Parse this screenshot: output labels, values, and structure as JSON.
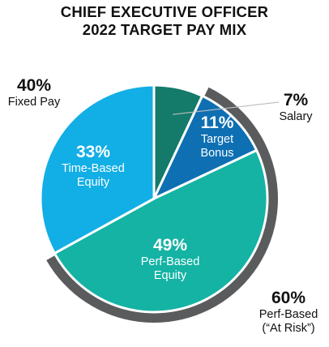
{
  "title": {
    "line1": "CHIEF EXECUTIVE OFFICER",
    "line2": "2022 TARGET PAY MIX"
  },
  "chart_data": {
    "type": "pie",
    "slices": [
      {
        "name": "Salary",
        "value": 7,
        "label": "7%",
        "color": "#147a6a"
      },
      {
        "name": "Target Bonus",
        "value": 11,
        "label": "11%",
        "color": "#0e6fb3"
      },
      {
        "name": "Perf-Based Equity",
        "value": 49,
        "label": "49%",
        "color": "#14b3a4"
      },
      {
        "name": "Time-Based Equity",
        "value": 33,
        "label": "33%",
        "color": "#12aee6"
      }
    ],
    "groups": [
      {
        "name": "Fixed Pay",
        "value": 40,
        "label": "40%",
        "members": [
          "Salary",
          "Time-Based Equity"
        ]
      },
      {
        "name": "Perf-Based (“At Risk”)",
        "value": 60,
        "label": "60%",
        "members": [
          "Target Bonus",
          "Perf-Based Equity"
        ],
        "arc_color": "#5a5b5d"
      }
    ]
  },
  "labels": {
    "salary": {
      "pct": "7%",
      "line1": "Salary"
    },
    "bonus": {
      "pct": "11%",
      "line1": "Target",
      "line2": "Bonus"
    },
    "time_equity": {
      "pct": "33%",
      "line1": "Time-Based",
      "line2": "Equity"
    },
    "perf_equity": {
      "pct": "49%",
      "line1": "Perf-Based",
      "line2": "Equity"
    },
    "fixed_pay": {
      "pct": "40%",
      "line1": "Fixed Pay"
    },
    "at_risk": {
      "pct": "60%",
      "line1": "Perf-Based",
      "line2": "(“At Risk”)"
    }
  }
}
